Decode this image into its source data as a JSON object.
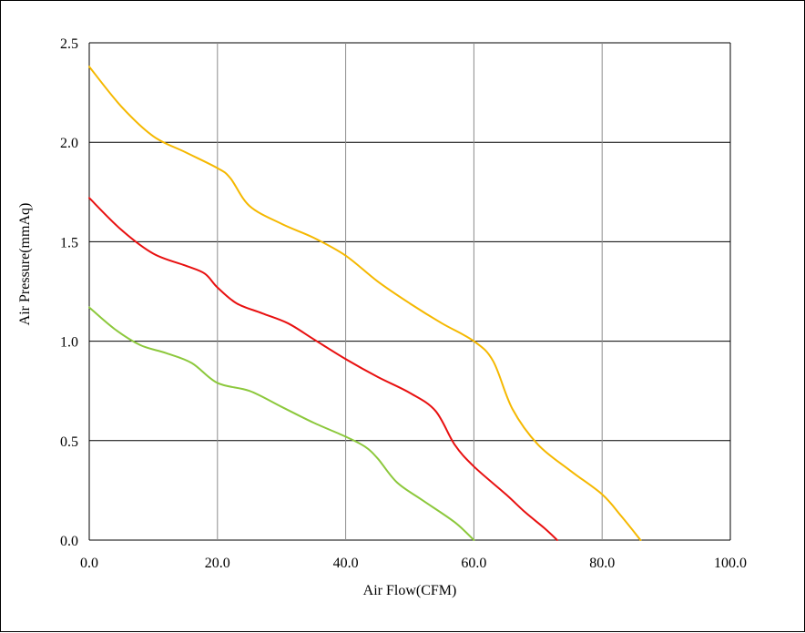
{
  "chart_data": {
    "type": "line",
    "title": "",
    "xlabel": "Air Flow(CFM)",
    "ylabel": "Air Pressure(mmAq)",
    "xlim": [
      0,
      100
    ],
    "ylim": [
      0,
      2.5
    ],
    "x_ticks": [
      0,
      20,
      40,
      60,
      80,
      100
    ],
    "y_ticks": [
      0,
      0.5,
      1.0,
      1.5,
      2.0,
      2.5
    ],
    "x_tick_labels": [
      "0.0",
      "20.0",
      "40.0",
      "60.0",
      "80.0",
      "100.0"
    ],
    "y_tick_labels": [
      "0.0",
      "0.5",
      "1.0",
      "1.5",
      "2.0",
      "2.5"
    ],
    "grid": true,
    "legend": "none",
    "series": [
      {
        "color": "#f5b800",
        "points": [
          [
            0,
            2.38
          ],
          [
            5,
            2.18
          ],
          [
            10,
            2.03
          ],
          [
            15,
            1.95
          ],
          [
            20,
            1.87
          ],
          [
            22,
            1.82
          ],
          [
            25,
            1.68
          ],
          [
            30,
            1.59
          ],
          [
            35,
            1.52
          ],
          [
            40,
            1.43
          ],
          [
            45,
            1.3
          ],
          [
            50,
            1.19
          ],
          [
            55,
            1.09
          ],
          [
            60,
            1.0
          ],
          [
            63,
            0.9
          ],
          [
            66,
            0.66
          ],
          [
            70,
            0.48
          ],
          [
            75,
            0.35
          ],
          [
            80,
            0.23
          ],
          [
            83,
            0.12
          ],
          [
            86,
            0.0
          ]
        ]
      },
      {
        "color": "#e81010",
        "points": [
          [
            0,
            1.72
          ],
          [
            5,
            1.56
          ],
          [
            10,
            1.44
          ],
          [
            15,
            1.38
          ],
          [
            18,
            1.34
          ],
          [
            20,
            1.27
          ],
          [
            23,
            1.19
          ],
          [
            27,
            1.14
          ],
          [
            31,
            1.09
          ],
          [
            35,
            1.01
          ],
          [
            40,
            0.91
          ],
          [
            45,
            0.82
          ],
          [
            50,
            0.74
          ],
          [
            54,
            0.65
          ],
          [
            57,
            0.48
          ],
          [
            60,
            0.37
          ],
          [
            65,
            0.23
          ],
          [
            68,
            0.14
          ],
          [
            71,
            0.06
          ],
          [
            73,
            0.0
          ]
        ]
      },
      {
        "color": "#8cc83c",
        "points": [
          [
            0,
            1.17
          ],
          [
            4,
            1.06
          ],
          [
            8,
            0.98
          ],
          [
            12,
            0.94
          ],
          [
            16,
            0.89
          ],
          [
            20,
            0.79
          ],
          [
            25,
            0.75
          ],
          [
            30,
            0.67
          ],
          [
            35,
            0.59
          ],
          [
            40,
            0.52
          ],
          [
            43,
            0.47
          ],
          [
            45,
            0.41
          ],
          [
            48,
            0.29
          ],
          [
            52,
            0.2
          ],
          [
            57,
            0.09
          ],
          [
            60,
            0.0
          ]
        ]
      }
    ]
  }
}
